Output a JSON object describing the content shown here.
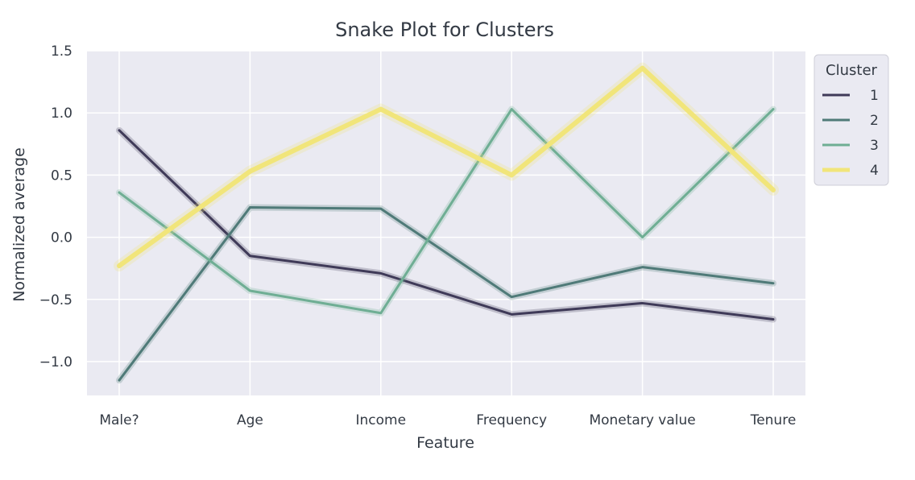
{
  "chart_data": {
    "type": "line",
    "title": "Snake Plot for Clusters",
    "xlabel": "Feature",
    "ylabel": "Normalized average",
    "categories": [
      "Male?",
      "Age",
      "Income",
      "Frequency",
      "Monetary value",
      "Tenure"
    ],
    "ylim": [
      -1.28,
      1.5
    ],
    "yticks": [
      1.5,
      1.0,
      0.5,
      0.0,
      -0.5,
      -1.0
    ],
    "ytick_labels": [
      "1.5",
      "1.0",
      "0.5",
      "0.0",
      "−0.5",
      "−1.0"
    ],
    "grid": true,
    "legend": {
      "title": "Cluster",
      "placement": "outside-top-right"
    },
    "series": [
      {
        "name": "1",
        "color": "#3f3a58",
        "values": [
          0.86,
          -0.15,
          -0.29,
          -0.62,
          -0.53,
          -0.66
        ]
      },
      {
        "name": "2",
        "color": "#4f7a78",
        "values": [
          -1.15,
          0.24,
          0.23,
          -0.48,
          -0.24,
          -0.37
        ]
      },
      {
        "name": "3",
        "color": "#6fae94",
        "values": [
          0.36,
          -0.43,
          -0.61,
          1.03,
          0.0,
          1.03
        ]
      },
      {
        "name": "4",
        "color": "#f1e57a",
        "values": [
          -0.23,
          0.53,
          1.03,
          0.5,
          1.36,
          0.38
        ]
      }
    ],
    "colors": {
      "plot_background": "#eaeaf2",
      "grid": "#ffffff",
      "text": "#333a44"
    }
  }
}
